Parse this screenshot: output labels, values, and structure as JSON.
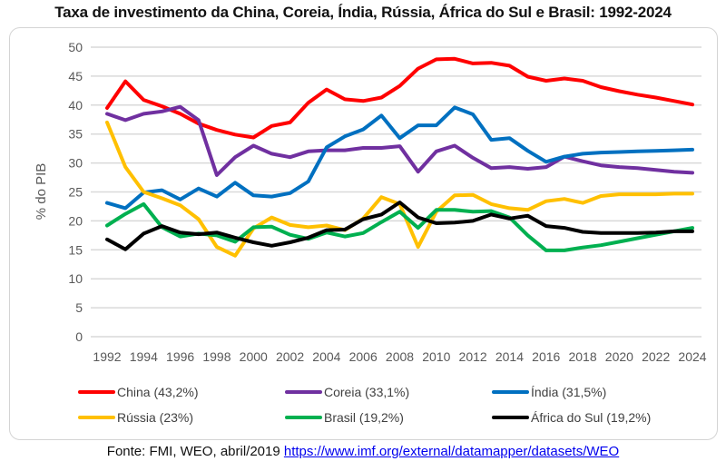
{
  "chart_data": {
    "type": "line",
    "title": "Taxa de investimento da China, Coreia, Índia, Rússia, África do Sul e Brasil: 1992-2024",
    "xlabel": "",
    "ylabel": "% do PIB",
    "ylim": [
      0,
      50
    ],
    "yticks": [
      "0",
      "5",
      "10",
      "15",
      "20",
      "25",
      "30",
      "35",
      "40",
      "45",
      "50"
    ],
    "ytick_values": [
      0,
      5,
      10,
      15,
      20,
      25,
      30,
      35,
      40,
      45,
      50
    ],
    "x": [
      1992,
      1993,
      1994,
      1995,
      1996,
      1997,
      1998,
      1999,
      2000,
      2001,
      2002,
      2003,
      2004,
      2005,
      2006,
      2007,
      2008,
      2009,
      2010,
      2011,
      2012,
      2013,
      2014,
      2015,
      2016,
      2017,
      2018,
      2019,
      2020,
      2021,
      2022,
      2023,
      2024
    ],
    "xtick_labels": [
      "1992",
      "1994",
      "1996",
      "1998",
      "2000",
      "2002",
      "2004",
      "2006",
      "2008",
      "2010",
      "2012",
      "2014",
      "2016",
      "2018",
      "2020",
      "2022",
      "2024"
    ],
    "grid": true,
    "legend_position": "bottom",
    "series": [
      {
        "name": "China (43,2%)",
        "color": "#ff0000",
        "values": [
          39.5,
          44.1,
          40.9,
          39.8,
          38.5,
          36.8,
          35.7,
          34.9,
          34.4,
          36.4,
          37.0,
          40.4,
          42.7,
          41.0,
          40.7,
          41.3,
          43.3,
          46.3,
          47.9,
          48.0,
          47.2,
          47.3,
          46.8,
          44.9,
          44.2,
          44.6,
          44.2,
          43.1,
          42.4,
          41.8,
          41.3,
          40.7,
          40.1
        ]
      },
      {
        "name": "Coreia (33,1%)",
        "color": "#7030a0",
        "values": [
          38.5,
          37.4,
          38.5,
          38.9,
          39.7,
          37.4,
          27.9,
          31.0,
          33.0,
          31.6,
          31.0,
          32.0,
          32.2,
          32.2,
          32.6,
          32.6,
          32.9,
          28.5,
          32.0,
          33.0,
          30.9,
          29.1,
          29.3,
          29.0,
          29.3,
          31.1,
          30.3,
          29.6,
          29.3,
          29.1,
          28.8,
          28.5,
          28.3
        ]
      },
      {
        "name": "Índia (31,5%)",
        "color": "#0070c0",
        "values": [
          23.1,
          22.2,
          24.9,
          25.3,
          23.7,
          25.6,
          24.2,
          26.6,
          24.4,
          24.2,
          24.8,
          26.8,
          32.7,
          34.6,
          35.8,
          38.2,
          34.3,
          36.5,
          36.5,
          39.6,
          38.4,
          34.0,
          34.3,
          32.1,
          30.2,
          31.1,
          31.6,
          31.8,
          31.9,
          32.0,
          32.1,
          32.2,
          32.3
        ]
      },
      {
        "name": "Rússia (23%)",
        "color": "#ffc000",
        "values": [
          37.0,
          29.3,
          25.0,
          23.9,
          22.7,
          20.3,
          15.5,
          14.0,
          18.7,
          20.6,
          19.3,
          18.9,
          19.2,
          18.4,
          20.4,
          24.1,
          22.9,
          15.5,
          21.6,
          24.4,
          24.5,
          22.9,
          22.2,
          21.9,
          23.4,
          23.8,
          23.1,
          24.3,
          24.6,
          24.6,
          24.6,
          24.7,
          24.7
        ]
      },
      {
        "name": "Brasil (19,2%)",
        "color": "#00b050",
        "values": [
          19.2,
          21.2,
          22.9,
          18.9,
          17.3,
          17.8,
          17.5,
          16.4,
          18.9,
          19.0,
          17.6,
          16.9,
          18.0,
          17.3,
          17.9,
          19.8,
          21.6,
          18.8,
          21.9,
          21.9,
          21.6,
          21.7,
          20.6,
          17.5,
          14.9,
          14.9,
          15.4,
          15.8,
          16.4,
          17.0,
          17.6,
          18.2,
          18.8
        ]
      },
      {
        "name": "África do Sul (19,2%)",
        "color": "#000000",
        "values": [
          16.8,
          15.1,
          17.8,
          19.1,
          18.0,
          17.7,
          18.0,
          17.1,
          16.3,
          15.7,
          16.3,
          17.1,
          18.4,
          18.5,
          20.3,
          21.1,
          23.2,
          20.6,
          19.6,
          19.7,
          20.0,
          21.1,
          20.4,
          20.9,
          19.1,
          18.8,
          18.1,
          17.9,
          17.9,
          17.9,
          18.0,
          18.2,
          18.2
        ]
      }
    ]
  },
  "legend": {
    "items": [
      {
        "label": "China (43,2%)",
        "color": "#ff0000"
      },
      {
        "label": "Coreia (33,1%)",
        "color": "#7030a0"
      },
      {
        "label": "Índia (31,5%)",
        "color": "#0070c0"
      },
      {
        "label": "Rússia (23%)",
        "color": "#ffc000"
      },
      {
        "label": "Brasil (19,2%)",
        "color": "#00b050"
      },
      {
        "label": "África do Sul (19,2%)",
        "color": "#000000"
      }
    ]
  },
  "footer": {
    "source_text": "Fonte: FMI, WEO, abril/2019",
    "link_text": "https://www.imf.org/external/datamapper/datasets/WEO"
  }
}
